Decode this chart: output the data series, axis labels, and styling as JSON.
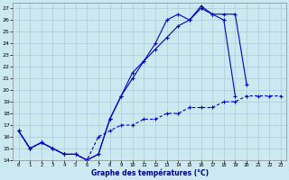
{
  "title": "Graphe des températures (°C)",
  "bg_color": "#cce8f0",
  "grid_color": "#aaccdd",
  "line_color": "#0000cc",
  "xlim": [
    -0.5,
    23.5
  ],
  "ylim": [
    14,
    27.5
  ],
  "xticks": [
    0,
    1,
    2,
    3,
    4,
    5,
    6,
    7,
    8,
    9,
    10,
    11,
    12,
    13,
    14,
    15,
    16,
    17,
    18,
    19,
    20,
    21,
    22,
    23
  ],
  "yticks": [
    14,
    15,
    16,
    17,
    18,
    19,
    20,
    21,
    22,
    23,
    24,
    25,
    26,
    27
  ],
  "line1_x": [
    0,
    1,
    2,
    3,
    4,
    5,
    6,
    7,
    8,
    9,
    10,
    11,
    12,
    13,
    14,
    15,
    16,
    17,
    18,
    19,
    20
  ],
  "line1_y": [
    16.5,
    15.0,
    15.5,
    15.0,
    14.5,
    14.5,
    14.0,
    14.5,
    17.5,
    19.5,
    21.5,
    22.5,
    23.5,
    24.5,
    25.5,
    26.0,
    27.0,
    26.5,
    26.5,
    26.5,
    20.5
  ],
  "line2_x": [
    0,
    1,
    2,
    3,
    4,
    5,
    6,
    7,
    8,
    9,
    10,
    11,
    12,
    13,
    14,
    15,
    16,
    17,
    18,
    19
  ],
  "line2_y": [
    16.5,
    15.0,
    15.5,
    15.0,
    14.5,
    14.5,
    14.0,
    14.5,
    17.5,
    19.5,
    21.0,
    22.5,
    24.0,
    26.0,
    26.5,
    26.0,
    27.2,
    26.5,
    26.0,
    19.5
  ],
  "line3_x": [
    0,
    1,
    2,
    3,
    4,
    5,
    6,
    7,
    8,
    9,
    10,
    11,
    12,
    13,
    14,
    15,
    16,
    17,
    18,
    19,
    20,
    21,
    22,
    23
  ],
  "line3_y": [
    16.5,
    15.0,
    15.5,
    15.0,
    14.5,
    14.5,
    14.0,
    16.0,
    16.5,
    17.0,
    17.0,
    17.5,
    17.5,
    18.0,
    18.0,
    18.5,
    18.5,
    18.5,
    19.0,
    19.0,
    19.5,
    19.5,
    19.5,
    19.5
  ]
}
